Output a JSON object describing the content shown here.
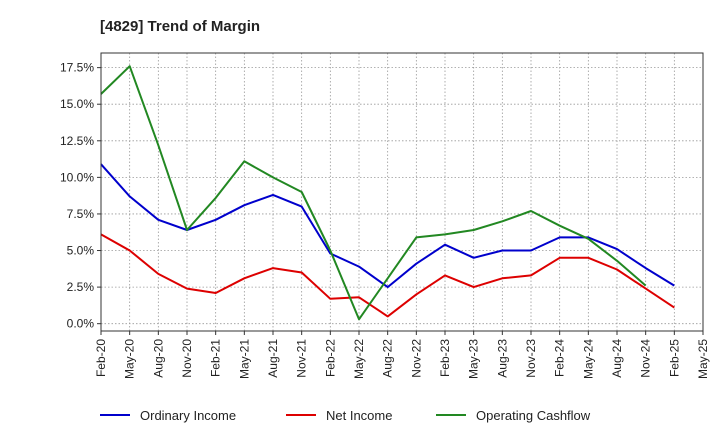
{
  "chart_data": {
    "type": "line",
    "title": "[4829]  Trend of Margin",
    "xlabel": "",
    "ylabel": "",
    "x": [
      "Feb-20",
      "May-20",
      "Aug-20",
      "Nov-20",
      "Feb-21",
      "May-21",
      "Aug-21",
      "Nov-21",
      "Feb-22",
      "May-22",
      "Aug-22",
      "Nov-22",
      "Feb-23",
      "May-23",
      "Aug-23",
      "Nov-23",
      "Feb-24",
      "May-24",
      "Aug-24",
      "Nov-24",
      "Feb-25",
      "May-25"
    ],
    "y_ticks": [
      "0.0%",
      "2.5%",
      "5.0%",
      "7.5%",
      "10.0%",
      "12.5%",
      "15.0%",
      "17.5%"
    ],
    "y_tick_values": [
      0,
      2.5,
      5.0,
      7.5,
      10.0,
      12.5,
      15.0,
      17.5
    ],
    "ylim": [
      -0.5,
      18.5
    ],
    "grid": true,
    "legend_position": "bottom",
    "series": [
      {
        "name": "Ordinary Income",
        "color": "#0000cc",
        "values": [
          10.9,
          8.7,
          7.1,
          6.4,
          7.1,
          8.1,
          8.8,
          8.0,
          4.8,
          3.9,
          2.5,
          4.1,
          5.4,
          4.5,
          5.0,
          5.0,
          5.9,
          5.9,
          5.1,
          3.8,
          2.6,
          null
        ]
      },
      {
        "name": "Net Income",
        "color": "#dd0000",
        "values": [
          6.1,
          5.0,
          3.4,
          2.4,
          2.1,
          3.1,
          3.8,
          3.5,
          1.7,
          1.8,
          0.5,
          2.0,
          3.3,
          2.5,
          3.1,
          3.3,
          4.5,
          4.5,
          3.7,
          2.4,
          1.1,
          null
        ]
      },
      {
        "name": "Operating Cashflow",
        "color": "#228822",
        "values": [
          15.7,
          17.6,
          12.2,
          6.4,
          8.6,
          11.1,
          10.0,
          9.0,
          5.0,
          0.3,
          3.1,
          5.9,
          6.1,
          6.4,
          7.0,
          7.7,
          6.7,
          5.8,
          4.3,
          2.6,
          null,
          null
        ]
      }
    ]
  }
}
